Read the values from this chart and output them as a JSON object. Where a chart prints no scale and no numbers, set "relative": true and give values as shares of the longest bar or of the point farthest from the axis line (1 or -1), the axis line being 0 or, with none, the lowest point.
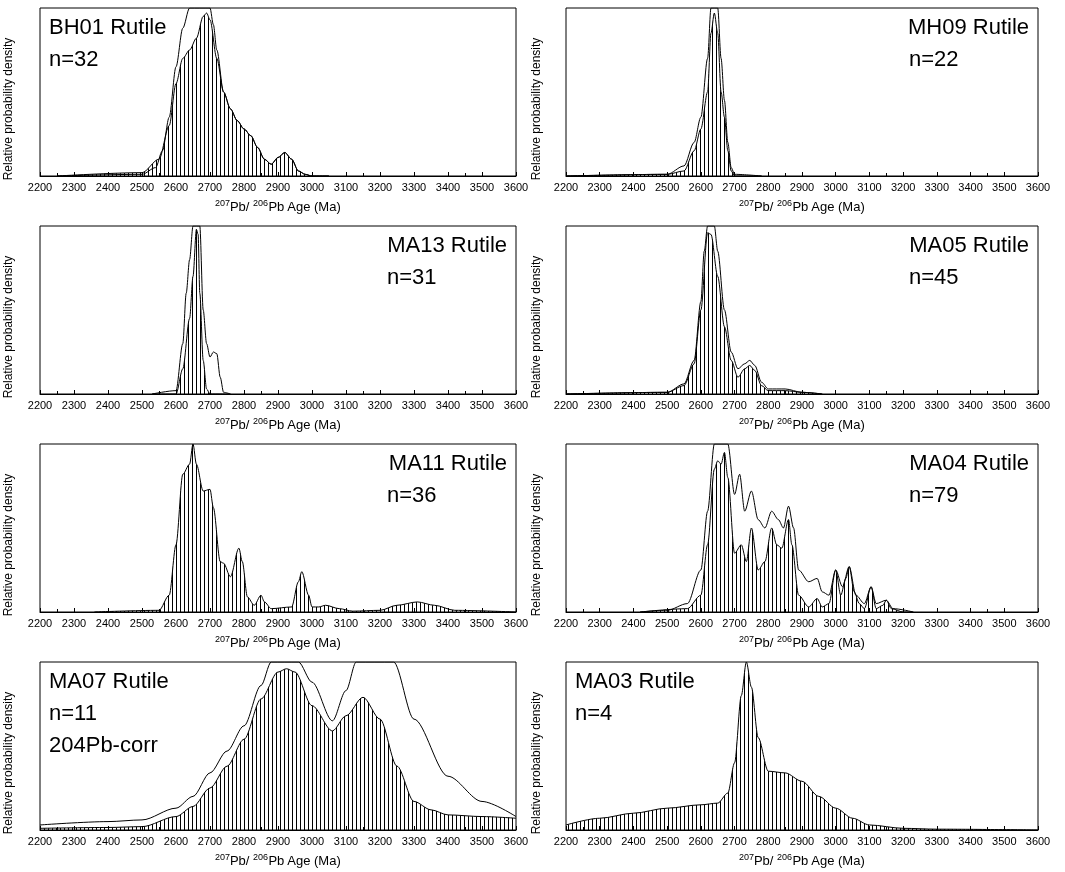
{
  "chart_data": [
    {
      "type": "line",
      "title": "BH01 Rutile",
      "annotations": [
        "n=32"
      ],
      "xlabel": "$^{207}$Pb/ $^{206}$Pb Age (Ma)",
      "ylabel": "Relative probability density",
      "relative": true,
      "marker": "none",
      "xlim": [
        2200,
        3600
      ],
      "xticks": [
        2200,
        2300,
        2400,
        2500,
        2600,
        2700,
        2800,
        2900,
        3000,
        3100,
        3200,
        3300,
        3400,
        3500,
        3600
      ],
      "series": [
        {
          "type": "area",
          "color": "#000000",
          "x": [
            2250,
            2500,
            2550,
            2580,
            2600,
            2620,
            2640,
            2660,
            2680,
            2690,
            2700,
            2720,
            2740,
            2760,
            2780,
            2800,
            2820,
            2840,
            2860,
            2880,
            2900,
            2920,
            2940,
            2960,
            2980,
            3000,
            3050
          ],
          "values": [
            0,
            0.02,
            0.1,
            0.3,
            0.55,
            0.7,
            0.75,
            0.82,
            0.95,
            0.97,
            0.93,
            0.7,
            0.5,
            0.4,
            0.33,
            0.28,
            0.24,
            0.17,
            0.1,
            0.07,
            0.11,
            0.14,
            0.1,
            0.03,
            0.01,
            0,
            0
          ]
        },
        {
          "type": "line",
          "color": "#000000",
          "x": [
            2250,
            2500,
            2540,
            2560,
            2580,
            2600,
            2620,
            2640,
            2700,
            2710,
            2720,
            2740,
            2760,
            2780,
            2800,
            2820,
            2840,
            2860,
            2880,
            2900,
            2920,
            2940,
            2960,
            2980,
            3000,
            3050
          ],
          "values": [
            0,
            0.01,
            0.05,
            0.15,
            0.35,
            0.65,
            0.88,
            1,
            1,
            0.9,
            0.75,
            0.5,
            0.4,
            0.33,
            0.28,
            0.24,
            0.17,
            0.1,
            0.07,
            0.11,
            0.14,
            0.1,
            0.03,
            0.01,
            0,
            0
          ]
        }
      ]
    },
    {
      "type": "line",
      "title": "MH09 Rutile",
      "annotations": [
        "n=22"
      ],
      "xlabel": "$^{207}$Pb/ $^{206}$Pb Age (Ma)",
      "ylabel": "Relative probability density",
      "relative": true,
      "marker": "none",
      "xlim": [
        2200,
        3600
      ],
      "xticks": [
        2200,
        2300,
        2400,
        2500,
        2600,
        2700,
        2800,
        2900,
        3000,
        3100,
        3200,
        3300,
        3400,
        3500,
        3600
      ],
      "series": [
        {
          "type": "area",
          "color": "#000000",
          "x": [
            2200,
            2500,
            2550,
            2580,
            2600,
            2620,
            2630,
            2640,
            2650,
            2660,
            2670,
            2680,
            2690,
            2700,
            2780
          ],
          "values": [
            0,
            0.01,
            0.03,
            0.15,
            0.28,
            0.5,
            0.85,
            0.97,
            0.85,
            0.5,
            0.35,
            0.15,
            0.03,
            0,
            0
          ]
        },
        {
          "type": "line",
          "color": "#000000",
          "x": [
            2200,
            2500,
            2550,
            2580,
            2600,
            2620,
            2630,
            2650,
            2660,
            2670,
            2680,
            2690,
            2700,
            2780
          ],
          "values": [
            0,
            0.01,
            0.06,
            0.2,
            0.35,
            0.7,
            1,
            1,
            0.7,
            0.45,
            0.2,
            0.05,
            0.01,
            0
          ]
        }
      ]
    },
    {
      "type": "line",
      "title": "MA13 Rutile",
      "annotations": [
        "n=31"
      ],
      "xlabel": "$^{207}$Pb/ $^{206}$Pb Age (Ma)",
      "ylabel": "Relative probability density",
      "relative": true,
      "marker": "none",
      "xlim": [
        2200,
        3600
      ],
      "xticks": [
        2200,
        2300,
        2400,
        2500,
        2600,
        2700,
        2800,
        2900,
        3000,
        3100,
        3200,
        3300,
        3400,
        3500,
        3600
      ],
      "series": [
        {
          "type": "area",
          "color": "#000000",
          "x": [
            2530,
            2600,
            2620,
            2640,
            2650,
            2660,
            2665,
            2670,
            2680,
            2690,
            2700,
            2760
          ],
          "values": [
            0,
            0,
            0.15,
            0.45,
            0.7,
            0.98,
            0.95,
            0.6,
            0.2,
            0.03,
            0,
            0
          ]
        },
        {
          "type": "line",
          "color": "#000000",
          "x": [
            2530,
            2600,
            2620,
            2630,
            2640,
            2650,
            2670,
            2680,
            2690,
            2700,
            2710,
            2720,
            2730,
            2740,
            2760
          ],
          "values": [
            0,
            0.02,
            0.3,
            0.6,
            0.8,
            1,
            1,
            0.5,
            0.3,
            0.22,
            0.25,
            0.24,
            0.1,
            0.01,
            0
          ]
        }
      ]
    },
    {
      "type": "line",
      "title": "MA05 Rutile",
      "annotations": [
        "n=45"
      ],
      "xlabel": "$^{207}$Pb/ $^{206}$Pb Age (Ma)",
      "ylabel": "Relative probability density",
      "relative": true,
      "marker": "none",
      "xlim": [
        2200,
        3600
      ],
      "xticks": [
        2200,
        2300,
        2400,
        2500,
        2600,
        2700,
        2800,
        2900,
        3000,
        3100,
        3200,
        3300,
        3400,
        3500,
        3600
      ],
      "series": [
        {
          "type": "area",
          "color": "#000000",
          "x": [
            2200,
            2500,
            2550,
            2580,
            2600,
            2620,
            2630,
            2650,
            2670,
            2690,
            2710,
            2730,
            2745,
            2760,
            2780,
            2800,
            2850,
            2900,
            2960
          ],
          "values": [
            0,
            0.01,
            0.05,
            0.18,
            0.5,
            0.96,
            0.95,
            0.7,
            0.4,
            0.2,
            0.1,
            0.15,
            0.17,
            0.14,
            0.05,
            0.02,
            0.02,
            0.01,
            0
          ]
        },
        {
          "type": "line",
          "color": "#000000",
          "x": [
            2200,
            2500,
            2550,
            2580,
            2600,
            2610,
            2620,
            2640,
            2650,
            2670,
            2690,
            2710,
            2730,
            2745,
            2760,
            2780,
            2800,
            2850,
            2900,
            2960
          ],
          "values": [
            0,
            0.01,
            0.06,
            0.2,
            0.55,
            0.85,
            1,
            1,
            0.85,
            0.5,
            0.25,
            0.15,
            0.18,
            0.2,
            0.17,
            0.07,
            0.03,
            0.03,
            0.01,
            0
          ]
        }
      ]
    },
    {
      "type": "line",
      "title": "MA11 Rutile",
      "annotations": [
        "n=36"
      ],
      "xlabel": "$^{207}$Pb/ $^{206}$Pb Age (Ma)",
      "ylabel": "Relative probability density",
      "relative": true,
      "marker": "none",
      "xlim": [
        2200,
        3600
      ],
      "xticks": [
        2200,
        2300,
        2400,
        2500,
        2600,
        2700,
        2800,
        2900,
        3000,
        3100,
        3200,
        3300,
        3400,
        3500,
        3600
      ],
      "series": [
        {
          "type": "area",
          "color": "#000000",
          "x": [
            2360,
            2550,
            2580,
            2600,
            2620,
            2640,
            2650,
            2660,
            2680,
            2700,
            2710,
            2730,
            2740,
            2760,
            2785,
            2795,
            2810,
            2830,
            2850,
            2860,
            2880,
            2940,
            2960,
            2970,
            2990,
            3000,
            3020,
            3040,
            3080,
            3120,
            3200,
            3250,
            3310,
            3360,
            3420,
            3600
          ],
          "values": [
            0,
            0.01,
            0.1,
            0.4,
            0.82,
            0.88,
            1,
            0.88,
            0.72,
            0.73,
            0.62,
            0.3,
            0.29,
            0.21,
            0.38,
            0.3,
            0.09,
            0.04,
            0.1,
            0.06,
            0.02,
            0.03,
            0.18,
            0.24,
            0.1,
            0.03,
            0.03,
            0.04,
            0.02,
            0.005,
            0.01,
            0.04,
            0.06,
            0.04,
            0.01,
            0
          ]
        }
      ]
    },
    {
      "type": "line",
      "title": "MA04 Rutile",
      "annotations": [
        "n=79"
      ],
      "xlabel": "$^{207}$Pb/ $^{206}$Pb Age (Ma)",
      "ylabel": "Relative probability density",
      "relative": true,
      "marker": "none",
      "xlim": [
        2200,
        3600
      ],
      "xticks": [
        2200,
        2300,
        2400,
        2500,
        2600,
        2700,
        2800,
        2900,
        3000,
        3100,
        3200,
        3300,
        3400,
        3500,
        3600
      ],
      "series": [
        {
          "type": "area",
          "color": "#000000",
          "x": [
            2420,
            2560,
            2600,
            2620,
            2640,
            2650,
            2660,
            2670,
            2680,
            2700,
            2720,
            2735,
            2750,
            2770,
            2790,
            2810,
            2825,
            2840,
            2860,
            2870,
            2890,
            2920,
            2945,
            2960,
            2980,
            3000,
            3015,
            3030,
            3040,
            3055,
            3070,
            3085,
            3105,
            3120,
            3140,
            3150,
            3165,
            3200,
            3230
          ],
          "values": [
            0,
            0.02,
            0.1,
            0.4,
            0.85,
            0.9,
            0.88,
            0.95,
            0.8,
            0.35,
            0.4,
            0.3,
            0.5,
            0.25,
            0.3,
            0.5,
            0.4,
            0.38,
            0.55,
            0.4,
            0.1,
            0.03,
            0.08,
            0.03,
            0.05,
            0.25,
            0.1,
            0.2,
            0.27,
            0.12,
            0.05,
            0.02,
            0.15,
            0.02,
            0.04,
            0.07,
            0.02,
            0,
            0
          ]
        },
        {
          "type": "line",
          "color": "#000000",
          "x": [
            2420,
            2500,
            2560,
            2600,
            2620,
            2640,
            2680,
            2700,
            2715,
            2730,
            2750,
            2770,
            2790,
            2810,
            2830,
            2845,
            2860,
            2875,
            2890,
            2920,
            2945,
            2960,
            2980,
            3000,
            3020,
            3040,
            3060,
            3085,
            3105,
            3120,
            3150,
            3170,
            3230
          ],
          "values": [
            0,
            0.01,
            0.05,
            0.25,
            0.6,
            1,
            1,
            0.7,
            0.82,
            0.6,
            0.72,
            0.55,
            0.5,
            0.6,
            0.55,
            0.5,
            0.63,
            0.5,
            0.25,
            0.18,
            0.2,
            0.12,
            0.1,
            0.25,
            0.15,
            0.27,
            0.1,
            0.05,
            0.15,
            0.05,
            0.07,
            0.02,
            0
          ]
        }
      ]
    },
    {
      "type": "line",
      "title": "MA07 Rutile",
      "annotations": [
        "n=11",
        "204Pb-corr"
      ],
      "xlabel": "$^{207}$Pb/ $^{206}$Pb Age (Ma)",
      "ylabel": "Relative probability density",
      "relative": true,
      "marker": "none",
      "xlim": [
        2200,
        3600
      ],
      "xticks": [
        2200,
        2300,
        2400,
        2500,
        2600,
        2700,
        2800,
        2900,
        3000,
        3100,
        3200,
        3300,
        3400,
        3500,
        3600
      ],
      "series": [
        {
          "type": "area",
          "color": "#000000",
          "x": [
            2200,
            2400,
            2500,
            2600,
            2650,
            2700,
            2750,
            2800,
            2850,
            2900,
            2925,
            2950,
            3000,
            3060,
            3100,
            3150,
            3200,
            3250,
            3300,
            3350,
            3400,
            3500,
            3600
          ],
          "values": [
            0.01,
            0.015,
            0.02,
            0.08,
            0.14,
            0.25,
            0.38,
            0.54,
            0.78,
            0.94,
            0.96,
            0.94,
            0.74,
            0.59,
            0.68,
            0.79,
            0.66,
            0.38,
            0.17,
            0.12,
            0.09,
            0.08,
            0.07
          ]
        },
        {
          "type": "line",
          "color": "#000000",
          "x": [
            2200,
            2400,
            2500,
            2600,
            2650,
            2700,
            2750,
            2800,
            2850,
            2880,
            2960,
            3000,
            3060,
            3100,
            3130,
            3240,
            3300,
            3400,
            3500,
            3600
          ],
          "values": [
            0.03,
            0.05,
            0.06,
            0.13,
            0.2,
            0.34,
            0.47,
            0.62,
            0.86,
            1,
            1,
            0.88,
            0.65,
            0.83,
            1,
            1,
            0.66,
            0.32,
            0.17,
            0.08
          ]
        }
      ]
    },
    {
      "type": "line",
      "title": "MA03 Rutile",
      "annotations": [
        "n=4"
      ],
      "xlabel": "$^{207}$Pb/ $^{206}$Pb Age (Ma)",
      "ylabel": "Relative probability density",
      "relative": true,
      "marker": "none",
      "xlim": [
        2200,
        3600
      ],
      "xticks": [
        2200,
        2300,
        2400,
        2500,
        2600,
        2700,
        2800,
        2900,
        3000,
        3100,
        3200,
        3300,
        3400,
        3500,
        3600
      ],
      "series": [
        {
          "type": "area",
          "color": "#000000",
          "x": [
            2200,
            2300,
            2400,
            2500,
            2600,
            2650,
            2680,
            2700,
            2720,
            2735,
            2750,
            2770,
            2800,
            2850,
            2900,
            2950,
            3000,
            3050,
            3100,
            3200,
            3300,
            3600
          ],
          "values": [
            0.03,
            0.07,
            0.1,
            0.13,
            0.15,
            0.16,
            0.22,
            0.4,
            0.8,
            1,
            0.85,
            0.55,
            0.35,
            0.34,
            0.29,
            0.2,
            0.13,
            0.07,
            0.03,
            0.01,
            0.005,
            0
          ]
        }
      ]
    }
  ]
}
